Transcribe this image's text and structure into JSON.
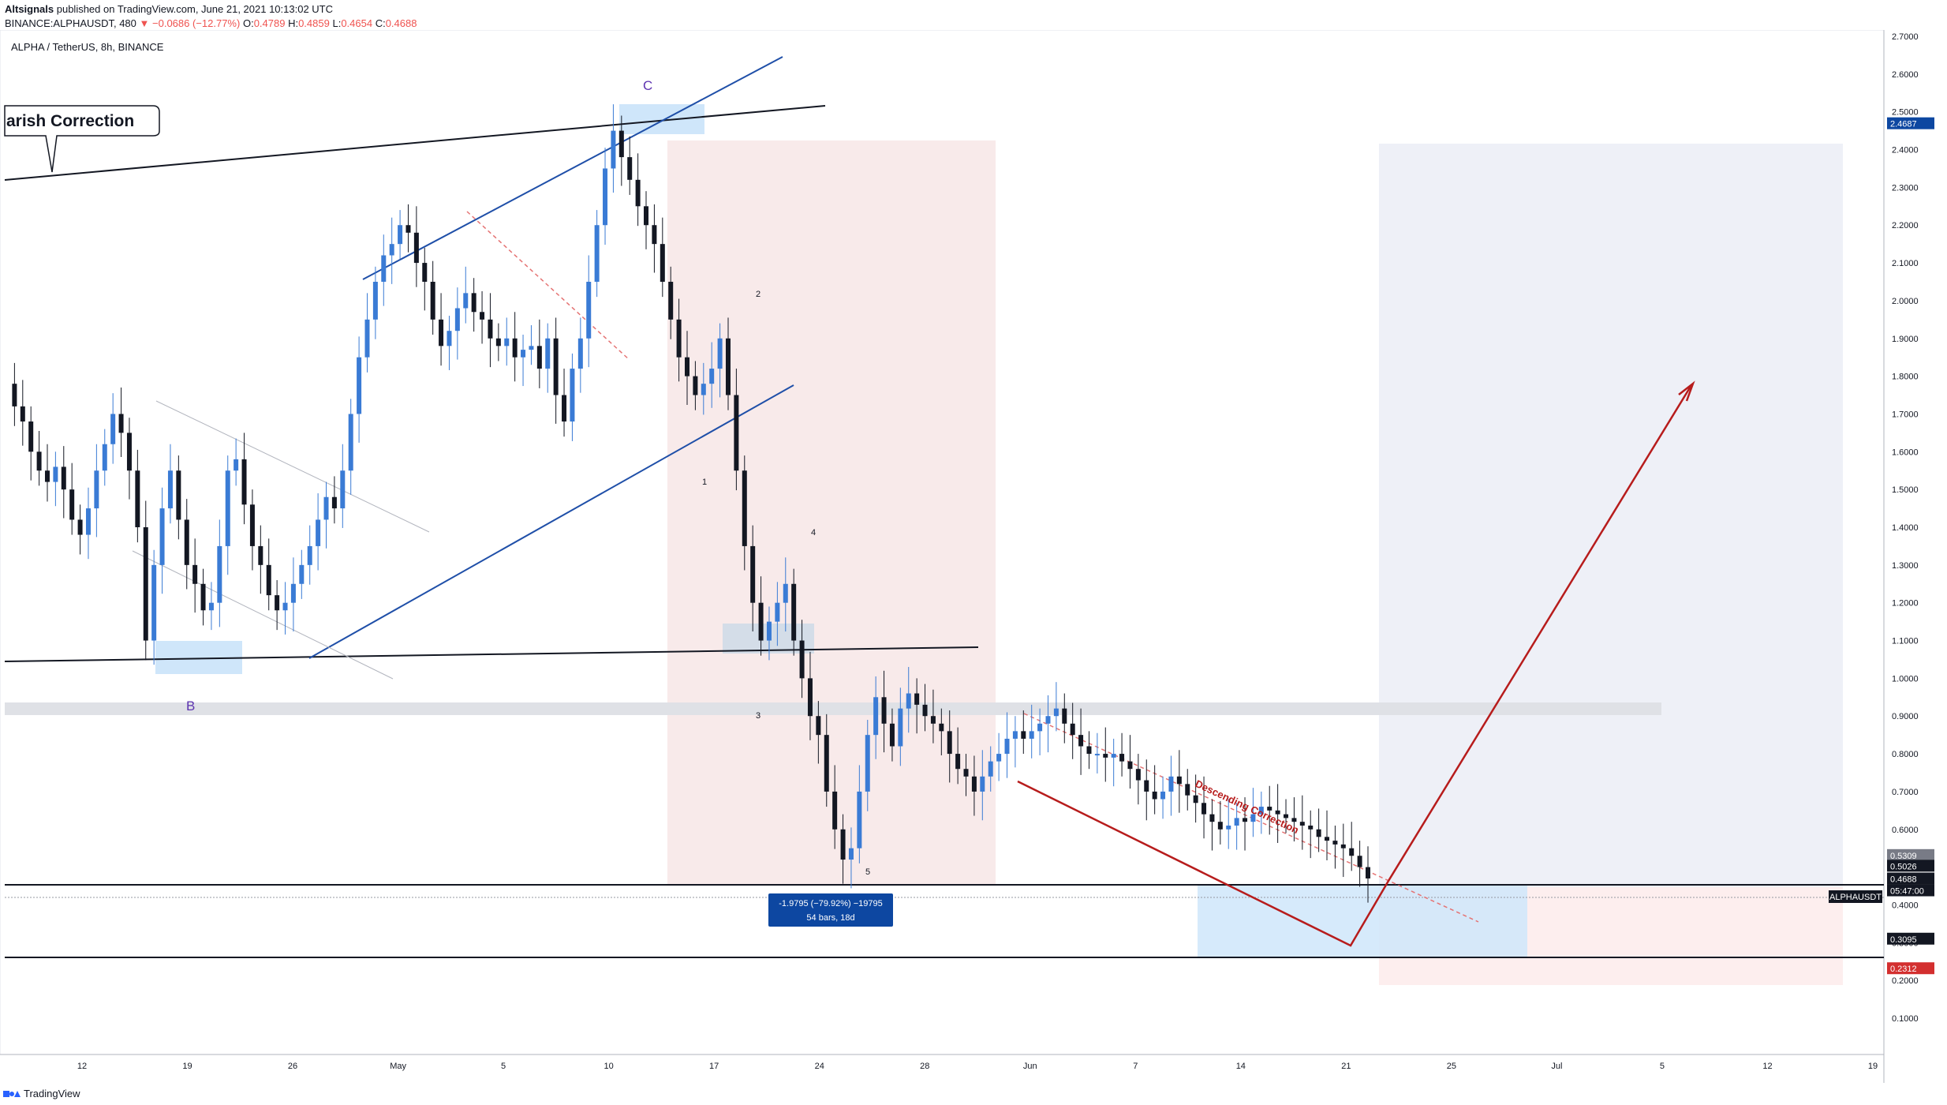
{
  "header": {
    "publisher": "Altsignals",
    "published_line": " published on TradingView.com, June 21, 2021 10:13:02 UTC",
    "symbol_line": "BINANCE:ALPHAUSDT, 480",
    "change": "▼ −0.0686 (−12.77%)",
    "o_label": "O:",
    "o_val": "0.4789",
    "h_label": "H:",
    "h_val": "0.4859",
    "l_label": "L:",
    "l_val": "0.4654",
    "c_label": "C:",
    "c_val": "0.4688"
  },
  "footer": {
    "brand": "TradingView"
  },
  "colors": {
    "up": "#3a7bd5",
    "down": "#131722",
    "blue_line": "#1f4fa8",
    "red_annot": "#b71c1c",
    "pink_zone": "#f5dede",
    "lavender_zone": "#eef0f7",
    "light_blue_zone": "#cfe6fa",
    "gray_band": "#dfe1e6"
  },
  "chart_data": {
    "type": "candlestick",
    "title": "ALPHA / TetherUS, 8h, BINANCE",
    "x_ticks": [
      "12",
      "19",
      "26",
      "May",
      "5",
      "10",
      "17",
      "24",
      "28",
      "Jun",
      "7",
      "14",
      "21",
      "25",
      "Jul",
      "5",
      "12",
      "19"
    ],
    "y_ticks": [
      "2.7000",
      "2.6000",
      "2.5000",
      "2.4000",
      "2.3000",
      "2.2000",
      "2.1000",
      "2.0000",
      "1.9000",
      "1.8000",
      "1.7000",
      "1.6000",
      "1.5000",
      "1.4000",
      "1.3000",
      "1.2000",
      "1.1000",
      "1.0000",
      "0.9000",
      "0.8000",
      "0.7000",
      "0.6000",
      "0.5000",
      "0.4000",
      "0.3000",
      "0.2000",
      "0.1000"
    ],
    "ylim": [
      0.1,
      2.7
    ],
    "price_tags": [
      {
        "label": "2.4687",
        "style": "navy"
      },
      {
        "label": "0.5309",
        "style": "gray"
      },
      {
        "label": "0.5026",
        "style": "dark"
      },
      {
        "label": "0.4688",
        "style": "dark"
      },
      {
        "label": "05:47:00",
        "style": "dark"
      },
      {
        "label": "0.3095",
        "style": "dark"
      },
      {
        "label": "0.2312",
        "style": "red"
      }
    ],
    "symbol_tag": "ALPHAUSDT",
    "annotations": {
      "callout": "arish Correction",
      "wave_B": "B",
      "wave_C": "C",
      "wave_labels": [
        "1",
        "2",
        "3",
        "4",
        "5"
      ],
      "descending": "Descending Correction",
      "measure_line1": "-1.9795 (−79.92%) −19795",
      "measure_line2": "54 bars, 18d"
    },
    "key_levels": [
      2.4687,
      0.5026,
      0.3095,
      1.1
    ],
    "price_path": [
      1.78,
      1.72,
      1.68,
      1.6,
      1.55,
      1.52,
      1.56,
      1.5,
      1.42,
      1.38,
      1.45,
      1.55,
      1.62,
      1.7,
      1.65,
      1.55,
      1.4,
      1.1,
      1.3,
      1.45,
      1.55,
      1.42,
      1.3,
      1.25,
      1.18,
      1.2,
      1.35,
      1.55,
      1.58,
      1.46,
      1.35,
      1.3,
      1.22,
      1.18,
      1.2,
      1.25,
      1.3,
      1.35,
      1.42,
      1.48,
      1.45,
      1.55,
      1.7,
      1.85,
      1.95,
      2.05,
      2.12,
      2.15,
      2.2,
      2.18,
      2.1,
      2.05,
      1.95,
      1.88,
      1.92,
      1.98,
      2.02,
      1.97,
      1.95,
      1.9,
      1.88,
      1.9,
      1.85,
      1.87,
      1.88,
      1.82,
      1.9,
      1.75,
      1.68,
      1.82,
      1.9,
      2.05,
      2.2,
      2.35,
      2.45,
      2.38,
      2.32,
      2.25,
      2.2,
      2.15,
      2.05,
      1.95,
      1.85,
      1.8,
      1.75,
      1.78,
      1.82,
      1.9,
      1.75,
      1.55,
      1.35,
      1.2,
      1.1,
      1.15,
      1.2,
      1.25,
      1.1,
      1.0,
      0.9,
      0.85,
      0.7,
      0.6,
      0.52,
      0.55,
      0.7,
      0.85,
      0.95,
      0.88,
      0.82,
      0.92,
      0.96,
      0.93,
      0.9,
      0.88,
      0.86,
      0.8,
      0.76,
      0.74,
      0.7,
      0.74,
      0.78,
      0.8,
      0.84,
      0.86,
      0.84,
      0.86,
      0.88,
      0.9,
      0.92,
      0.88,
      0.85,
      0.82,
      0.8,
      0.8,
      0.79,
      0.8,
      0.78,
      0.76,
      0.73,
      0.7,
      0.68,
      0.7,
      0.74,
      0.72,
      0.69,
      0.67,
      0.64,
      0.62,
      0.6,
      0.61,
      0.63,
      0.62,
      0.64,
      0.66,
      0.65,
      0.64,
      0.63,
      0.62,
      0.61,
      0.6,
      0.58,
      0.57,
      0.56,
      0.55,
      0.53,
      0.5,
      0.47
    ]
  }
}
